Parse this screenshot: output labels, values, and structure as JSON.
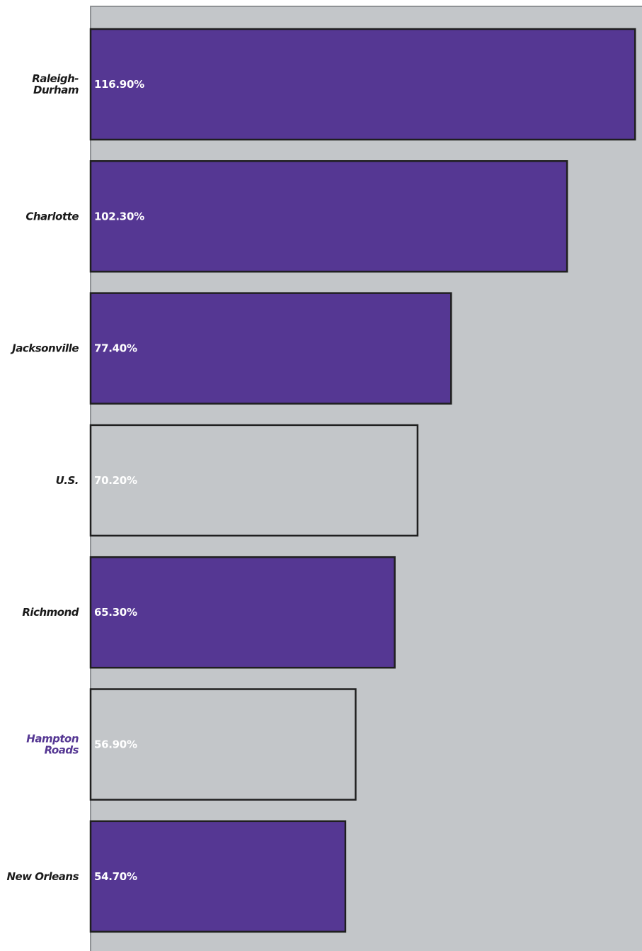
{
  "colors": {
    "plot_background": "#c3c6c9",
    "highlight_bar": "#553793",
    "reference_bar": "#c3c6c9",
    "bar_border": "#1f1f1f",
    "axis_line": "#8f9295",
    "label_default": "#1a1a1a",
    "label_highlight": "#553793",
    "value_text": "#ffffff"
  },
  "chart_data": {
    "type": "bar",
    "orientation": "horizontal",
    "title": "",
    "xlabel": "",
    "ylabel": "",
    "xlim": [
      0,
      119
    ],
    "grid": false,
    "legend": "none",
    "categories": [
      {
        "label": [
          "Raleigh-",
          "Durham"
        ],
        "value": 116.9,
        "display": "116.90%",
        "style": "highlight",
        "label_style": "default"
      },
      {
        "label": [
          "Charlotte"
        ],
        "value": 102.3,
        "display": "102.30%",
        "style": "highlight",
        "label_style": "default"
      },
      {
        "label": [
          "Jacksonville"
        ],
        "value": 77.4,
        "display": "77.40%",
        "style": "highlight",
        "label_style": "default"
      },
      {
        "label": [
          "U.S."
        ],
        "value": 70.2,
        "display": "70.20%",
        "style": "reference",
        "label_style": "default"
      },
      {
        "label": [
          "Richmond"
        ],
        "value": 65.3,
        "display": "65.30%",
        "style": "highlight",
        "label_style": "default"
      },
      {
        "label": [
          "Hampton",
          "Roads"
        ],
        "value": 56.9,
        "display": "56.90%",
        "style": "reference",
        "label_style": "highlight"
      },
      {
        "label": [
          "New Orleans"
        ],
        "value": 54.7,
        "display": "54.70%",
        "style": "highlight",
        "label_style": "default"
      }
    ]
  }
}
